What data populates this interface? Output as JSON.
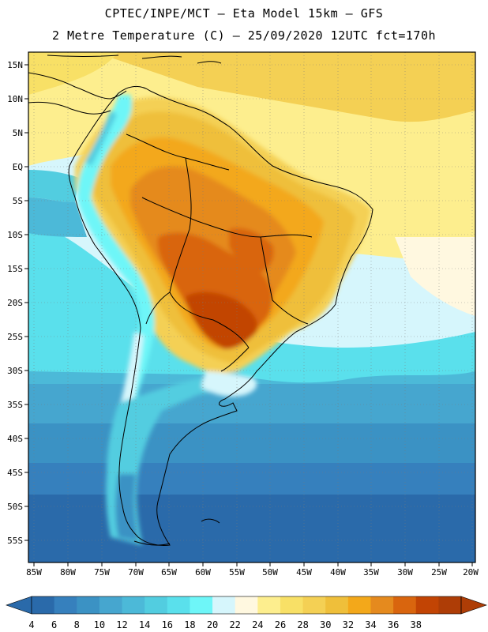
{
  "header": {
    "line1": "CPTEC/INPE/MCT –  Eta Model 15km – GFS",
    "line2": "2 Metre Temperature (C) – 25/09/2020 12UTC fct=170h"
  },
  "map": {
    "region": "South America",
    "lat_labels": [
      "15N",
      "10N",
      "5N",
      "EQ",
      "5S",
      "10S",
      "15S",
      "20S",
      "25S",
      "30S",
      "35S",
      "40S",
      "45S",
      "50S",
      "55S"
    ],
    "lon_labels": [
      "85W",
      "80W",
      "75W",
      "70W",
      "65W",
      "60W",
      "55W",
      "50W",
      "45W",
      "40W",
      "35W",
      "30W",
      "25W",
      "20W"
    ]
  },
  "colorbar": {
    "labels": [
      "4",
      "6",
      "8",
      "10",
      "12",
      "14",
      "16",
      "18",
      "20",
      "22",
      "24",
      "26",
      "28",
      "30",
      "32",
      "34",
      "36",
      "38"
    ],
    "colors": [
      "#2a6aaa",
      "#3680bd",
      "#3b92c4",
      "#46a6cf",
      "#4cb9d8",
      "#52cde0",
      "#5ae0ec",
      "#6ef6f8",
      "#d6f6fc",
      "#fff8e0",
      "#fdee8e",
      "#f8e066",
      "#f4d054",
      "#efbf3a",
      "#f3a81a",
      "#e58a1e",
      "#d9650e",
      "#c24404",
      "#ae3d06"
    ],
    "unit": "C"
  }
}
